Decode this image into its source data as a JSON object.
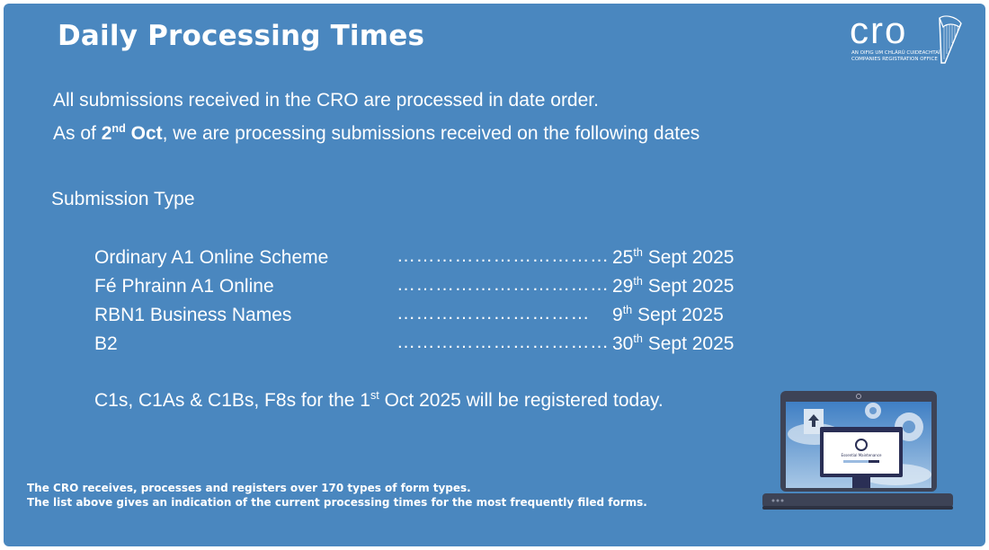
{
  "header": {
    "title": "Daily Processing Times"
  },
  "logo": {
    "text": "CRO",
    "irish_name": "AN OIFIG UM CHLÁRÚ CUIDEACHTAÍ",
    "english_name": "COMPANIES REGISTRATION OFFICE"
  },
  "intro": {
    "line1": "All submissions received in the CRO are processed in date order.",
    "line2_prefix": "As of ",
    "line2_date": "2",
    "line2_sup": "nd",
    "line2_month": " Oct",
    "line2_suffix": ", we are processing submissions received on the following dates"
  },
  "table": {
    "heading": "Submission Type",
    "rows": [
      {
        "name": "Ordinary A1 Online Scheme",
        "dots": "……………………………",
        "day": "25",
        "sup": "th",
        "rest": " Sept 2025"
      },
      {
        "name": "Fé Phrainn A1 Online",
        "dots": "……………………………",
        "day": "29",
        "sup": "th",
        "rest": " Sept 2025"
      },
      {
        "name": "RBN1 Business Names",
        "dots": "…………………………",
        "day": "9",
        "sup": "th",
        "rest": " Sept 2025"
      },
      {
        "name": "B2",
        "dots": "……………………………",
        "day": "30",
        "sup": "th",
        "rest": " Sept 2025"
      }
    ]
  },
  "notice": {
    "prefix": "C1s, C1As & C1Bs, F8s for the 1",
    "sup": "st",
    "suffix": " Oct 2025 will be registered today."
  },
  "footer": {
    "line1": "The CRO receives, processes and registers over 170 types of form types.",
    "line2": "The list above gives an indication of the current processing times for the most frequently filed forms."
  },
  "illustration": {
    "screen_text": "Essential Maintenance"
  },
  "colors": {
    "background": "#4a87bf",
    "text": "#ffffff",
    "laptop": "#3d4356"
  }
}
